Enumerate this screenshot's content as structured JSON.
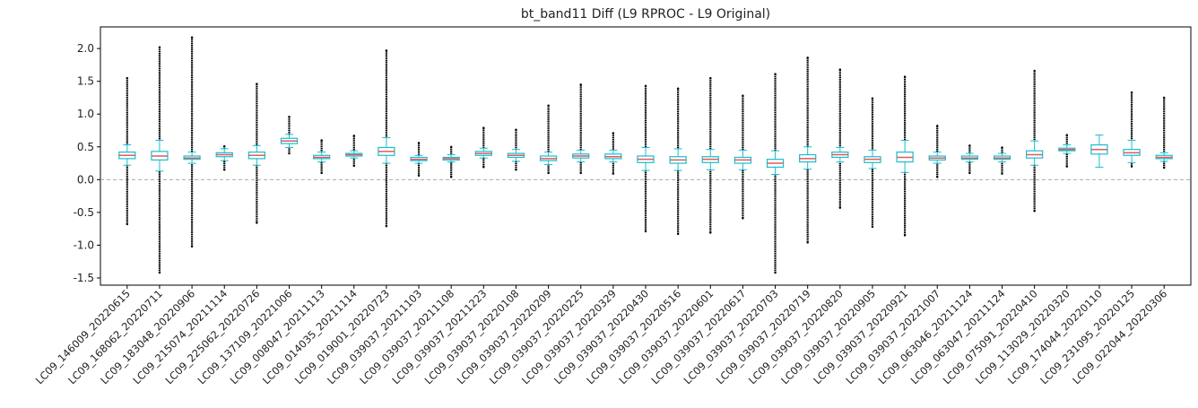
{
  "chart_data": {
    "type": "box",
    "title": "bt_band11 Diff (L9 RPROC - L9 Original)",
    "categories": [
      "LC09_146009_20220615",
      "LC09_168062_20220711",
      "LC09_183048_20220906",
      "LC09_215074_20211114",
      "LC09_225062_20220726",
      "LC09_137109_20221006",
      "LC09_008047_20211113",
      "LC09_014035_20211114",
      "LC09_019001_20220723",
      "LC09_039037_20211103",
      "LC09_039037_20211108",
      "LC09_039037_20211223",
      "LC09_039037_20220108",
      "LC09_039037_20220209",
      "LC09_039037_20220225",
      "LC09_039037_20220329",
      "LC09_039037_20220430",
      "LC09_039037_20220516",
      "LC09_039037_20220601",
      "LC09_039037_20220617",
      "LC09_039037_20220703",
      "LC09_039037_20220719",
      "LC09_039037_20220820",
      "LC09_039037_20220905",
      "LC09_039037_20220921",
      "LC09_039037_20221007",
      "LC09_063046_20211124",
      "LC09_063047_20211124",
      "LC09_075091_20220410",
      "LC09_113029_20220320",
      "LC09_174044_20220110",
      "LC09_231095_20220125",
      "LC09_022044_20220306"
    ],
    "boxes": [
      {
        "low": 0.22,
        "q1": 0.32,
        "median": 0.37,
        "q3": 0.42,
        "high": 0.53,
        "fliers": [
          -0.68,
          1.55
        ]
      },
      {
        "low": 0.13,
        "q1": 0.3,
        "median": 0.36,
        "q3": 0.43,
        "high": 0.6,
        "fliers": [
          -1.42,
          2.02
        ]
      },
      {
        "low": 0.25,
        "q1": 0.31,
        "median": 0.33,
        "q3": 0.36,
        "high": 0.42,
        "fliers": [
          -1.02,
          2.17
        ]
      },
      {
        "low": 0.29,
        "q1": 0.35,
        "median": 0.38,
        "q3": 0.41,
        "high": 0.47,
        "fliers": [
          0.15,
          0.51
        ]
      },
      {
        "low": 0.22,
        "q1": 0.32,
        "median": 0.37,
        "q3": 0.42,
        "high": 0.52,
        "fliers": [
          -0.66,
          1.46
        ]
      },
      {
        "low": 0.49,
        "q1": 0.55,
        "median": 0.59,
        "q3": 0.63,
        "high": 0.69,
        "fliers": [
          0.4,
          0.96
        ]
      },
      {
        "low": 0.27,
        "q1": 0.32,
        "median": 0.34,
        "q3": 0.37,
        "high": 0.42,
        "fliers": [
          0.1,
          0.6
        ]
      },
      {
        "low": 0.33,
        "q1": 0.36,
        "median": 0.38,
        "q3": 0.4,
        "high": 0.44,
        "fliers": [
          0.21,
          0.67
        ]
      },
      {
        "low": 0.25,
        "q1": 0.37,
        "median": 0.43,
        "q3": 0.49,
        "high": 0.64,
        "fliers": [
          -0.71,
          1.97
        ]
      },
      {
        "low": 0.25,
        "q1": 0.29,
        "median": 0.31,
        "q3": 0.34,
        "high": 0.37,
        "fliers": [
          0.06,
          0.56
        ]
      },
      {
        "low": 0.27,
        "q1": 0.3,
        "median": 0.32,
        "q3": 0.34,
        "high": 0.38,
        "fliers": [
          0.04,
          0.5
        ]
      },
      {
        "low": 0.33,
        "q1": 0.37,
        "median": 0.4,
        "q3": 0.43,
        "high": 0.48,
        "fliers": [
          0.19,
          0.79
        ]
      },
      {
        "low": 0.28,
        "q1": 0.34,
        "median": 0.37,
        "q3": 0.4,
        "high": 0.46,
        "fliers": [
          0.15,
          0.76
        ]
      },
      {
        "low": 0.23,
        "q1": 0.29,
        "median": 0.32,
        "q3": 0.36,
        "high": 0.42,
        "fliers": [
          0.1,
          1.13
        ]
      },
      {
        "low": 0.27,
        "q1": 0.33,
        "median": 0.36,
        "q3": 0.39,
        "high": 0.45,
        "fliers": [
          0.1,
          1.45
        ]
      },
      {
        "low": 0.27,
        "q1": 0.32,
        "median": 0.35,
        "q3": 0.39,
        "high": 0.45,
        "fliers": [
          0.09,
          0.71
        ]
      },
      {
        "low": 0.14,
        "q1": 0.26,
        "median": 0.31,
        "q3": 0.36,
        "high": 0.49,
        "fliers": [
          -0.79,
          1.43
        ]
      },
      {
        "low": 0.14,
        "q1": 0.25,
        "median": 0.3,
        "q3": 0.35,
        "high": 0.47,
        "fliers": [
          -0.83,
          1.39
        ]
      },
      {
        "low": 0.15,
        "q1": 0.26,
        "median": 0.31,
        "q3": 0.35,
        "high": 0.46,
        "fliers": [
          -0.81,
          1.55
        ]
      },
      {
        "low": 0.15,
        "q1": 0.25,
        "median": 0.3,
        "q3": 0.34,
        "high": 0.45,
        "fliers": [
          -0.59,
          1.28
        ]
      },
      {
        "low": 0.08,
        "q1": 0.19,
        "median": 0.25,
        "q3": 0.31,
        "high": 0.44,
        "fliers": [
          -1.42,
          1.61
        ]
      },
      {
        "low": 0.16,
        "q1": 0.27,
        "median": 0.32,
        "q3": 0.38,
        "high": 0.5,
        "fliers": [
          -0.96,
          1.86
        ]
      },
      {
        "low": 0.27,
        "q1": 0.34,
        "median": 0.38,
        "q3": 0.42,
        "high": 0.49,
        "fliers": [
          -0.43,
          1.68
        ]
      },
      {
        "low": 0.17,
        "q1": 0.26,
        "median": 0.31,
        "q3": 0.35,
        "high": 0.45,
        "fliers": [
          -0.72,
          1.24
        ]
      },
      {
        "low": 0.11,
        "q1": 0.27,
        "median": 0.34,
        "q3": 0.42,
        "high": 0.6,
        "fliers": [
          -0.85,
          1.57
        ]
      },
      {
        "low": 0.25,
        "q1": 0.3,
        "median": 0.33,
        "q3": 0.36,
        "high": 0.42,
        "fliers": [
          0.04,
          0.82
        ]
      },
      {
        "low": 0.27,
        "q1": 0.31,
        "median": 0.33,
        "q3": 0.36,
        "high": 0.4,
        "fliers": [
          0.1,
          0.52
        ]
      },
      {
        "low": 0.27,
        "q1": 0.31,
        "median": 0.33,
        "q3": 0.36,
        "high": 0.4,
        "fliers": [
          0.09,
          0.49
        ]
      },
      {
        "low": 0.22,
        "q1": 0.33,
        "median": 0.38,
        "q3": 0.44,
        "high": 0.59,
        "fliers": [
          -0.48,
          1.66
        ]
      },
      {
        "low": 0.4,
        "q1": 0.44,
        "median": 0.46,
        "q3": 0.48,
        "high": 0.53,
        "fliers": [
          0.2,
          0.68
        ]
      },
      {
        "low": 0.19,
        "q1": 0.39,
        "median": 0.46,
        "q3": 0.53,
        "high": 0.68,
        "fliers": []
      },
      {
        "low": 0.26,
        "q1": 0.37,
        "median": 0.41,
        "q3": 0.46,
        "high": 0.6,
        "fliers": [
          0.2,
          1.33
        ]
      },
      {
        "low": 0.28,
        "q1": 0.32,
        "median": 0.34,
        "q3": 0.37,
        "high": 0.41,
        "fliers": [
          0.18,
          1.25
        ]
      }
    ],
    "box_color": "#17becf",
    "median_color": "#e05a5a",
    "flier_color": "#000000",
    "reference_line": 0,
    "ylim": [
      -1.61,
      2.33
    ],
    "yticks": [
      -1.5,
      {
        "value": -1.0,
        "label": "-1.0"
      },
      -0.5,
      {
        "value": 0.0,
        "label": "0.0"
      },
      0.5,
      {
        "value": 1.0,
        "label": "1.0"
      },
      1.5,
      {
        "value": 2.0,
        "label": "2.0"
      }
    ]
  }
}
